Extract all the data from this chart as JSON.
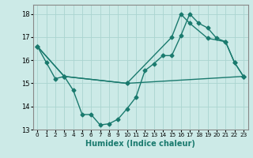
{
  "title": "",
  "xlabel": "Humidex (Indice chaleur)",
  "bg_color": "#cceae7",
  "line_color": "#1a7a6e",
  "grid_color": "#aad4d0",
  "xlim": [
    -0.5,
    23.5
  ],
  "ylim": [
    13,
    18.4
  ],
  "yticks": [
    13,
    14,
    15,
    16,
    17,
    18
  ],
  "xticks": [
    0,
    1,
    2,
    3,
    4,
    5,
    6,
    7,
    8,
    9,
    10,
    11,
    12,
    13,
    14,
    15,
    16,
    17,
    18,
    19,
    20,
    21,
    22,
    23
  ],
  "line1_x": [
    0,
    1,
    2,
    3,
    4,
    5,
    6,
    7,
    8,
    9,
    10,
    11,
    12,
    13,
    14,
    15,
    16,
    17,
    18,
    19,
    20,
    21,
    22,
    23
  ],
  "line1_y": [
    16.6,
    15.9,
    15.2,
    15.3,
    14.7,
    13.65,
    13.65,
    13.2,
    13.25,
    13.45,
    13.9,
    14.4,
    15.55,
    15.85,
    16.2,
    16.2,
    17.05,
    18.0,
    17.6,
    17.4,
    16.95,
    16.8,
    15.9,
    15.3
  ],
  "line2_x": [
    0,
    3,
    10,
    15,
    16,
    17,
    19,
    21,
    22,
    23
  ],
  "line2_y": [
    16.6,
    15.3,
    15.0,
    17.0,
    18.0,
    17.6,
    16.95,
    16.8,
    15.9,
    15.3
  ],
  "line3_x": [
    0,
    3,
    10,
    23
  ],
  "line3_y": [
    16.6,
    15.3,
    15.0,
    15.3
  ]
}
